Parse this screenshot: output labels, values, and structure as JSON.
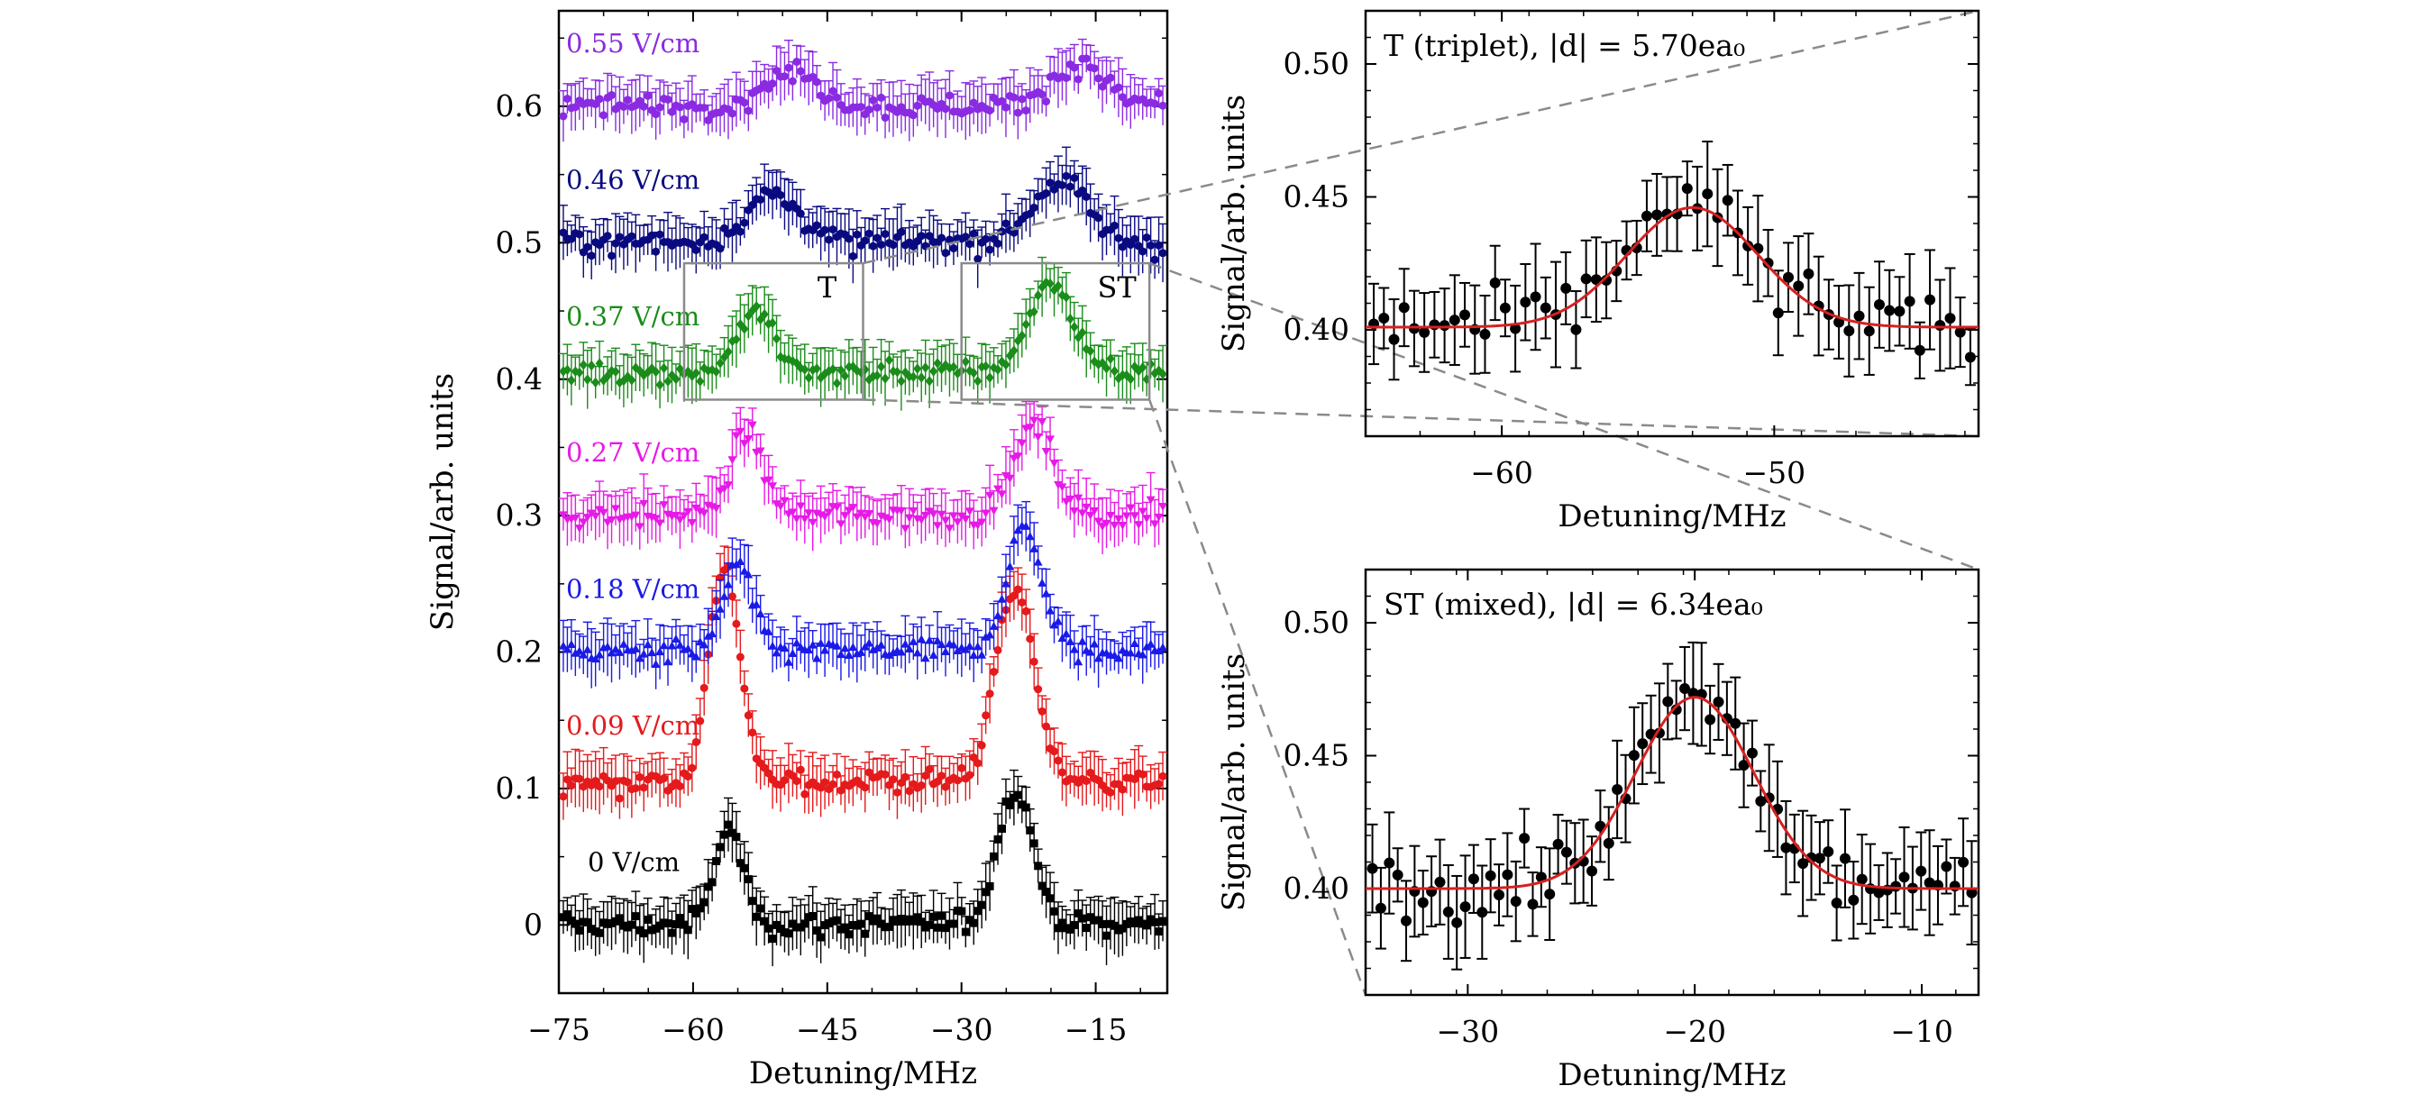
{
  "chart_data": [
    {
      "type": "scatter",
      "panel": "main",
      "xlabel": "Detuning/MHz",
      "ylabel": "Signal/arb. units",
      "xlim": [
        -75,
        -7
      ],
      "ylim": [
        -0.05,
        0.67
      ],
      "xticks": [
        -75,
        -60,
        -45,
        -30,
        -15
      ],
      "xtick_labels": [
        "−75",
        "−60",
        "−45",
        "−30",
        "−15"
      ],
      "yticks": [
        0,
        0.1,
        0.2,
        0.3,
        0.4,
        0.5,
        0.6
      ],
      "ytick_labels": [
        "0",
        "0.1",
        "0.2",
        "0.3",
        "0.4",
        "0.5",
        "0.6"
      ],
      "series": [
        {
          "name": "0 V/cm",
          "color": "#000000",
          "marker": "square",
          "baseline": 0.0,
          "peaks": [
            {
              "center": -56,
              "amp": 0.07,
              "width": 1.6
            },
            {
              "center": -24,
              "amp": 0.1,
              "width": 2.0
            }
          ]
        },
        {
          "name": "0.09 V/cm",
          "color": "#e41a1c",
          "marker": "circle",
          "baseline": 0.105,
          "peaks": [
            {
              "center": -56.5,
              "amp": 0.16,
              "width": 1.7
            },
            {
              "center": -24,
              "amp": 0.14,
              "width": 2.2
            }
          ]
        },
        {
          "name": "0.18 V/cm",
          "color": "#1a1ae6",
          "marker": "triangle-up",
          "baseline": 0.2,
          "peaks": [
            {
              "center": -55,
              "amp": 0.065,
              "width": 1.6
            },
            {
              "center": -23,
              "amp": 0.09,
              "width": 2.0
            }
          ]
        },
        {
          "name": "0.27 V/cm",
          "color": "#e61ae6",
          "marker": "triangle-down",
          "baseline": 0.3,
          "peaks": [
            {
              "center": -54,
              "amp": 0.06,
              "width": 1.8
            },
            {
              "center": -22,
              "amp": 0.065,
              "width": 2.2
            }
          ]
        },
        {
          "name": "0.37 V/cm",
          "color": "#1a8c1a",
          "marker": "diamond",
          "baseline": 0.405,
          "peaks": [
            {
              "center": -53,
              "amp": 0.045,
              "width": 2.0
            },
            {
              "center": -20,
              "amp": 0.065,
              "width": 2.5
            }
          ]
        },
        {
          "name": "0.46 V/cm",
          "color": "#0a0a80",
          "marker": "circle",
          "baseline": 0.5,
          "peaks": [
            {
              "center": -51,
              "amp": 0.035,
              "width": 3.0
            },
            {
              "center": -19,
              "amp": 0.045,
              "width": 3.0
            }
          ]
        },
        {
          "name": "0.55 V/cm",
          "color": "#8a2be2",
          "marker": "circle",
          "baseline": 0.6,
          "peaks": [
            {
              "center": -49,
              "amp": 0.025,
              "width": 3.0
            },
            {
              "center": -17,
              "amp": 0.03,
              "width": 3.0
            }
          ]
        }
      ],
      "boxes": [
        {
          "label": "T",
          "x": [
            -61,
            -41
          ],
          "y": [
            0.385,
            0.485
          ]
        },
        {
          "label": "ST",
          "x": [
            -30,
            -9
          ],
          "y": [
            0.385,
            0.485
          ]
        }
      ]
    },
    {
      "type": "scatter",
      "panel": "inset-T",
      "title": "T (triplet), |d| = 5.70ea₀",
      "xlabel": "Detuning/MHz",
      "ylabel": "Signal/arb. units",
      "xlim": [
        -65,
        -42.5
      ],
      "ylim": [
        0.36,
        0.52
      ],
      "xticks": [
        -60,
        -50
      ],
      "xtick_labels": [
        "−60",
        "−50"
      ],
      "yticks": [
        0.4,
        0.45,
        0.5
      ],
      "ytick_labels": [
        "0.40",
        "0.45",
        "0.50"
      ],
      "fit": {
        "color": "#d62020",
        "baseline": 0.401,
        "amp": 0.045,
        "center": -53,
        "sigma": 2.4
      },
      "points_color": "#000000"
    },
    {
      "type": "scatter",
      "panel": "inset-ST",
      "title": "ST (mixed), |d| = 6.34ea₀",
      "xlabel": "Detuning/MHz",
      "ylabel": "Signal/arb. units",
      "xlim": [
        -34.5,
        -7.5
      ],
      "ylim": [
        0.36,
        0.52
      ],
      "xticks": [
        -30,
        -20,
        -10
      ],
      "xtick_labels": [
        "−30",
        "−20",
        "−10"
      ],
      "yticks": [
        0.4,
        0.45,
        0.5
      ],
      "ytick_labels": [
        "0.40",
        "0.45",
        "0.50"
      ],
      "fit": {
        "color": "#d62020",
        "baseline": 0.4,
        "amp": 0.072,
        "center": -20,
        "sigma": 2.6
      },
      "points_color": "#000000"
    }
  ]
}
